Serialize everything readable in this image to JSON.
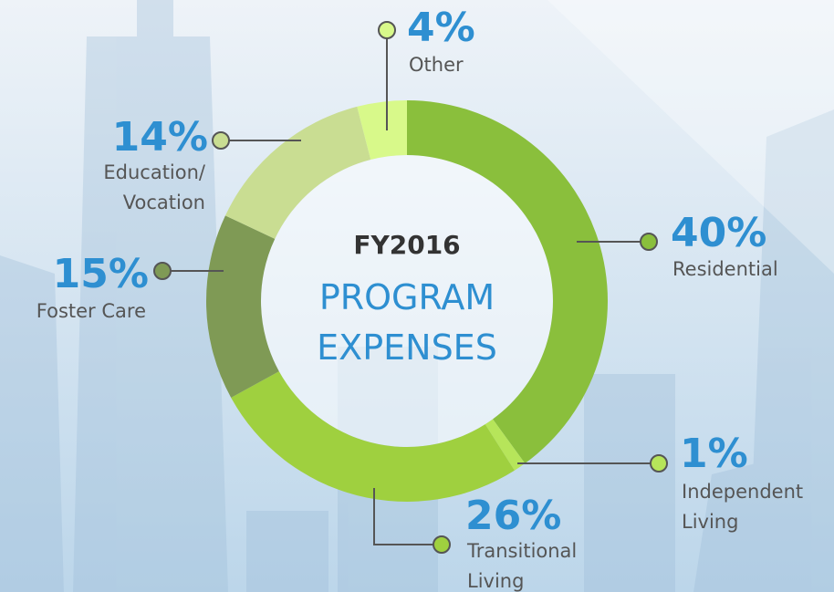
{
  "chart_data": {
    "type": "donut",
    "title": "FY2016",
    "subtitle": "PROGRAM\nEXPENSES",
    "categories": [
      "Residential",
      "Independent\nLiving",
      "Transitional\nLiving",
      "Foster Care",
      "Education/\nVocation",
      "Other"
    ],
    "values": [
      40,
      1,
      26,
      15,
      14,
      4
    ],
    "value_labels": [
      "40%",
      "1%",
      "26%",
      "15%",
      "14%",
      "4%"
    ],
    "colors": [
      "#8abf3c",
      "#b6e55a",
      "#9fd03f",
      "#7f9a55",
      "#c9dd92",
      "#d8f98a"
    ]
  }
}
